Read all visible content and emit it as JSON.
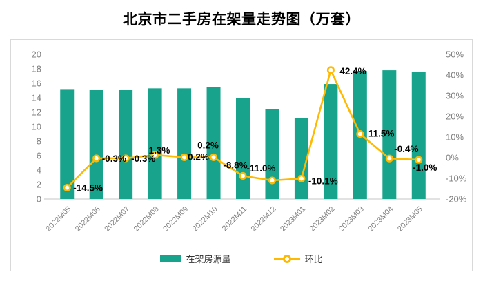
{
  "page": {
    "title": "北京市二手房在架量走势图（万套）"
  },
  "chart_data": {
    "type": "combo bar+line",
    "categories": [
      "2022M05",
      "2022M06",
      "2022M07",
      "2022M08",
      "2022M09",
      "2022M10",
      "2022M11",
      "2022M12",
      "2023M01",
      "2023M02",
      "2023M03",
      "2023M04",
      "2023M05"
    ],
    "series": [
      {
        "name": "在架房源量",
        "type": "bar",
        "axis": "left",
        "color": "#18A48C",
        "values": [
          15.2,
          15.1,
          15.1,
          15.3,
          15.3,
          15.5,
          14.0,
          12.4,
          11.2,
          15.9,
          17.7,
          17.8,
          17.6
        ]
      },
      {
        "name": "环比",
        "type": "line",
        "axis": "right",
        "color": "#FFB900",
        "marker_fill": "#FFFFFF",
        "values": [
          -14.5,
          -0.3,
          -0.3,
          1.3,
          0.2,
          0.2,
          -8.8,
          -11.0,
          -10.1,
          42.4,
          11.5,
          -0.4,
          -1.0
        ],
        "labels": [
          "-14.5%",
          "-0.3%",
          "-0.3%",
          "1.3%",
          "0.2%",
          "0.2%",
          "-8.8%",
          "-11.0%",
          "-10.1%",
          "42.4%",
          "11.5%",
          "-0.4%",
          "-1.0%"
        ]
      }
    ],
    "left_axis": {
      "min": 0,
      "max": 20,
      "step": 2,
      "tick_labels": [
        "0",
        "2",
        "4",
        "6",
        "8",
        "10",
        "12",
        "14",
        "16",
        "18",
        "20"
      ]
    },
    "right_axis": {
      "min": -20,
      "max": 50,
      "step": 10,
      "tick_labels": [
        "-20%",
        "-10%",
        "0%",
        "10%",
        "20%",
        "30%",
        "40%",
        "50%"
      ]
    },
    "grid": false,
    "legend": {
      "position": "bottom",
      "items": [
        "在架房源量",
        "环比"
      ]
    }
  },
  "colors": {
    "bar": "#18A48C",
    "line": "#FFB900",
    "axis_text": "#808080",
    "data_label": "#000000",
    "baseline": "#d9d9d9",
    "card_border": "#d9d9d9"
  }
}
